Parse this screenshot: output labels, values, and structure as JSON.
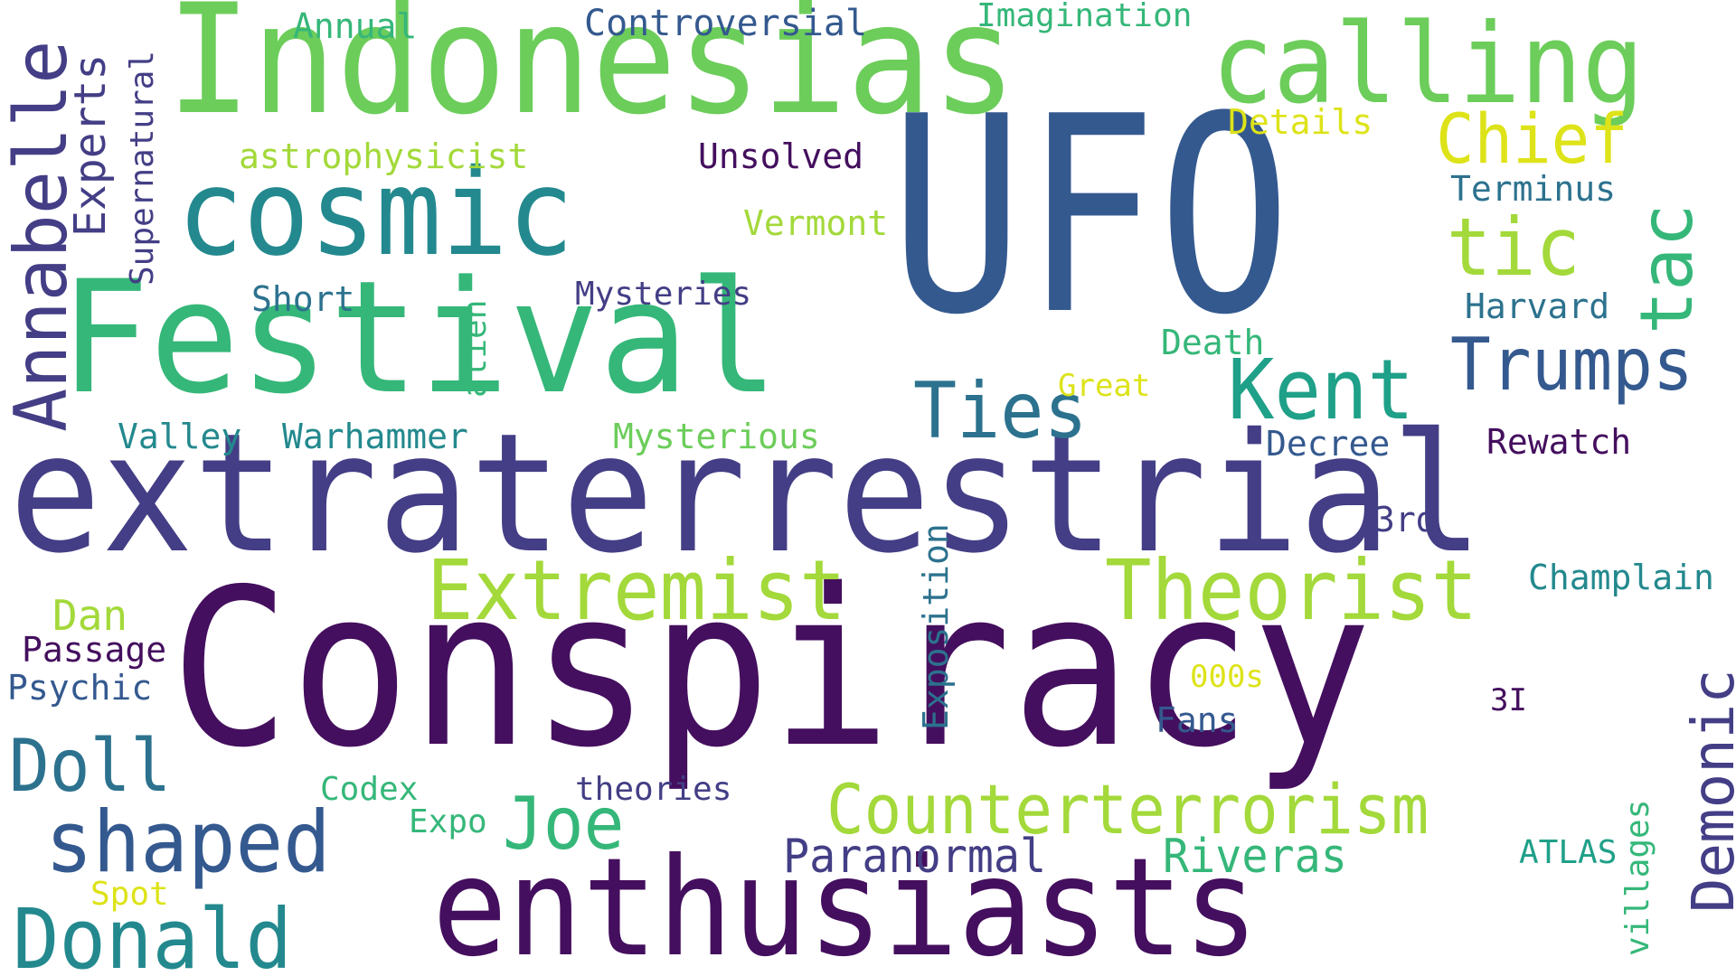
{
  "words": {
    "ufo": "UFO",
    "conspiracy": "Conspiracy",
    "extraterrestrial": "extraterrestrial",
    "indonesias": "Indonesias",
    "festival": "Festival",
    "enthusiasts": "enthusiasts",
    "cosmic": "cosmic",
    "calling": "calling",
    "theorist": "Theorist",
    "extremist": "Extremist",
    "counterterrorism": "Counterterrorism",
    "annabelle": "Annabelle",
    "shaped": "shaped",
    "donald": "Donald",
    "ties": "Ties",
    "kent": "Kent",
    "trumps": "Trumps",
    "tic": "tic",
    "tac": "tac",
    "chief": "Chief",
    "joe": "Joe",
    "doll": "Doll",
    "demonic": "Demonic",
    "paranormal": "Paranormal",
    "riveras": "Riveras",
    "experts": "Experts",
    "supernatural": "Supernatural",
    "annual": "Annual",
    "controversial": "Controversial",
    "imagination": "Imagination",
    "astrophysicist": "astrophysicist",
    "unsolved": "Unsolved",
    "details": "Details",
    "vermont": "Vermont",
    "terminus": "Terminus",
    "short": "Short",
    "mysteries": "Mysteries",
    "harvard": "Harvard",
    "alien": "alien",
    "death": "Death",
    "great": "Great",
    "valley": "Valley",
    "warhammer": "Warhammer",
    "mysterious": "Mysterious",
    "decree": "Decree",
    "rewatch": "Rewatch",
    "third": "3rd",
    "champlain": "Champlain",
    "dan": "Dan",
    "passage": "Passage",
    "psychic": "Psychic",
    "exposition": "Exposition",
    "thousands": "000s",
    "three_i": "3I",
    "fans": "Fans",
    "codex": "Codex",
    "theories": "theories",
    "expo": "Expo",
    "spot": "Spot",
    "atlas": "ATLAS",
    "villages": "villages"
  }
}
